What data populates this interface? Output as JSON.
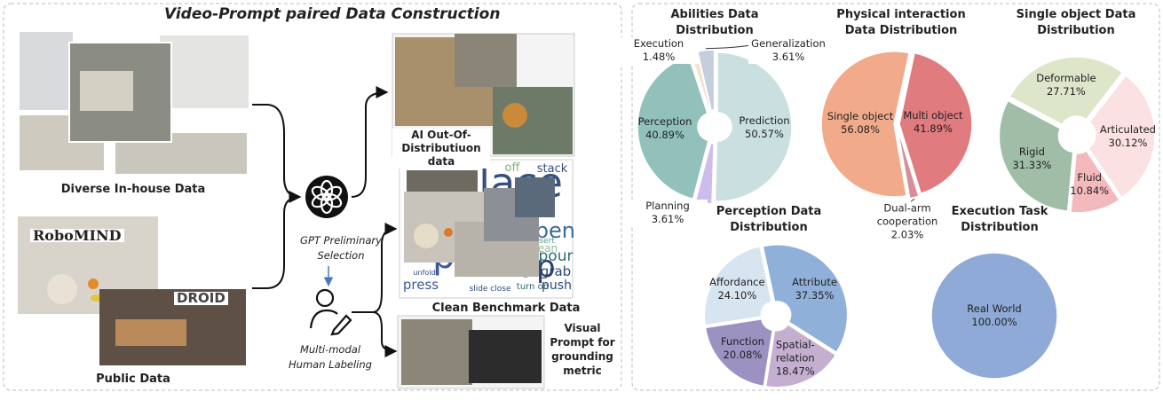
{
  "diagram": {
    "title": "Video-Prompt paired Data Construction",
    "sources": [
      {
        "label": "Diverse In-house Data"
      },
      {
        "label": "Public Data",
        "datasets": [
          "RoboMIND",
          "DROID"
        ]
      }
    ],
    "steps": [
      {
        "label": "GPT Preliminary Selection"
      },
      {
        "label": "Multi-modal Human Labeling"
      }
    ],
    "outputs": [
      {
        "label": "AI Out-Of-Distributiuon data"
      },
      {
        "label": "Clean Benchmark Data",
        "words": [
          "place",
          "pick",
          "up",
          "open",
          "pour",
          "grab",
          "push",
          "press",
          "stack",
          "off",
          "clean",
          "insert",
          "turn on",
          "slide close",
          "unfold"
        ]
      },
      {
        "label": "Visual Prompt for grounding metric"
      }
    ]
  },
  "chart_data": [
    {
      "type": "pie",
      "title": "Abilities Data Distribution",
      "categories": [
        "Prediction",
        "Planning",
        "Perception",
        "Execution",
        "Generalization"
      ],
      "values": [
        50.57,
        3.61,
        40.89,
        1.48,
        3.61
      ],
      "value_labels": [
        "50.57%",
        "3.61%",
        "40.89%",
        "1.48%",
        "3.61%"
      ],
      "colors": [
        "#c9dfe0",
        "#cdbdec",
        "#92c1bc",
        "#eee6d1",
        "#c5cede"
      ]
    },
    {
      "type": "pie",
      "title": "Physical interaction Data Distribution",
      "categories": [
        "Multi object",
        "Dual-arm cooperation",
        "Single object"
      ],
      "values": [
        41.89,
        2.03,
        56.08
      ],
      "value_labels": [
        "41.89%",
        "2.03%",
        "56.08%"
      ],
      "colors": [
        "#e07b7f",
        "#d88e9a",
        "#f1aa8a"
      ]
    },
    {
      "type": "pie",
      "title": "Single object Data Distribution",
      "categories": [
        "Deformable",
        "Articulated",
        "Fluid",
        "Rigid"
      ],
      "values": [
        27.71,
        30.12,
        10.84,
        31.33
      ],
      "value_labels": [
        "27.71%",
        "30.12%",
        "10.84%",
        "31.33%"
      ],
      "colors": [
        "#dde6c9",
        "#fbe1e1",
        "#f4b9bd",
        "#9fbda7"
      ]
    },
    {
      "type": "pie",
      "title": "Perception Data Distribution",
      "categories": [
        "Attribute",
        "Spatial-relation",
        "Function",
        "Affordance"
      ],
      "values": [
        37.35,
        18.47,
        20.08,
        24.1
      ],
      "value_labels": [
        "37.35%",
        "18.47%",
        "20.08%",
        "24.10%"
      ],
      "colors": [
        "#8fb1d9",
        "#c4afd1",
        "#9b92c1",
        "#d7e5f0"
      ]
    },
    {
      "type": "pie",
      "title": "Execution Task Distribution",
      "categories": [
        "Real World"
      ],
      "values": [
        100.0
      ],
      "value_labels": [
        "100.00%"
      ],
      "colors": [
        "#8faad7"
      ]
    }
  ]
}
